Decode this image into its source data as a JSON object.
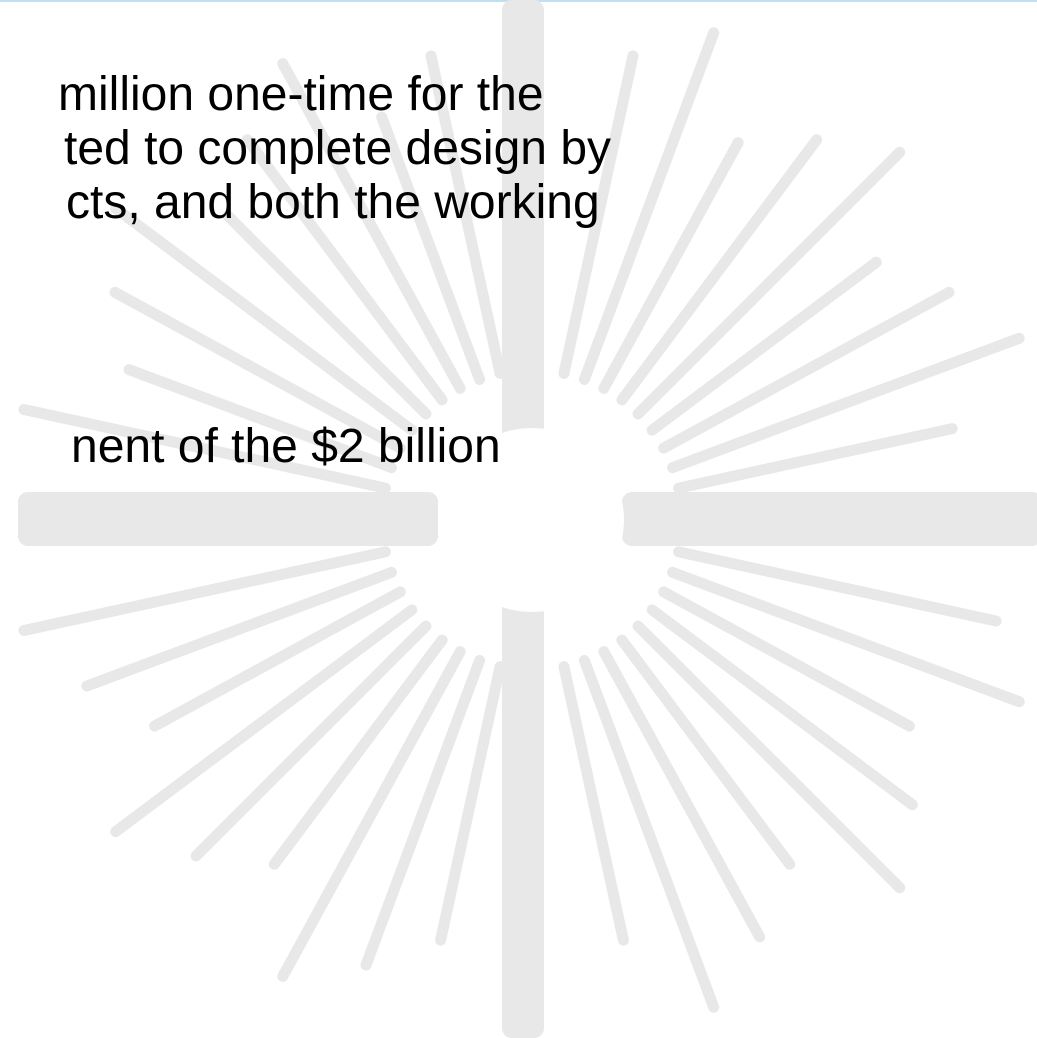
{
  "slide": {
    "background_color": "#ffffff",
    "accent_color": "#bfe3ee",
    "watermark_color": "#e8e8e8",
    "watermark_icon": "sunburst-cross-icon",
    "paragraph_1": {
      "lines": [
        "million one-time for the",
        "ted to complete design by",
        "cts, and both the working"
      ]
    },
    "paragraph_2": {
      "lines": [
        "nent of the $2 billion"
      ]
    }
  }
}
